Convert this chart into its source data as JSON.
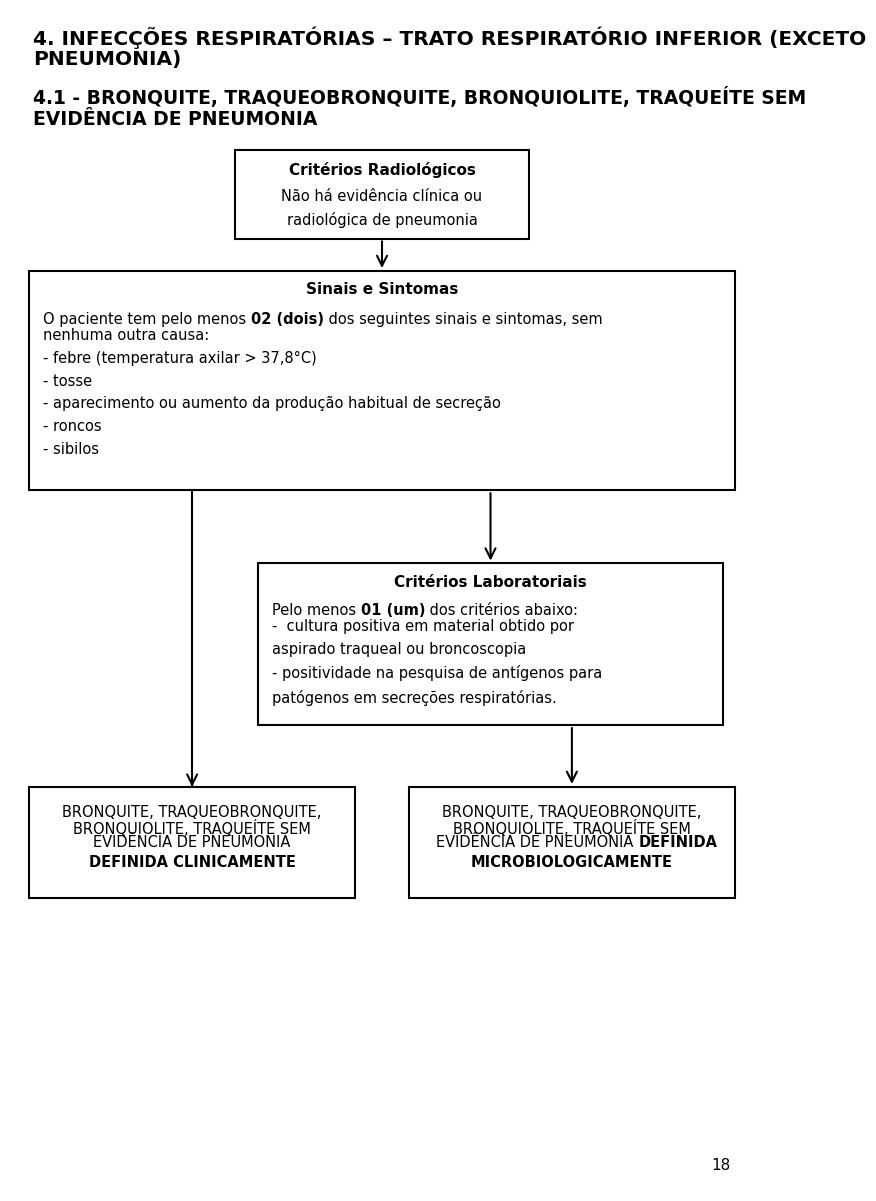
{
  "title_line1": "4. INFECÇÕES RESPIRATÓRIAS – TRATO RESPIRATÓRIO INFERIOR (EXCETO",
  "title_line2": "PNEUMONIA)",
  "subtitle_line1": "4.1 - BRONQUITE, TRAQUEOBRONQUITE, BRONQUIOLITE, TRAQUEÍTE SEM",
  "subtitle_line2": "EVIDÊNCIA DE PNEUMONIA",
  "box1_title": "Critérios Radiológicos",
  "box1_body": "Não há evidência clínica ou\nradiológica de pneumonia",
  "box2_title": "Sinais e Sintomas",
  "box3_title": "Critérios Laboratoriais",
  "box4_line1": "BRONQUITE, TRAQUEOBRONQUITE,",
  "box4_line2": "BRONQUIOLITE, TRAQUEÍTE SEM",
  "box4_line3": "EVIDÊNCIA DE PNEUMONIA",
  "box4_bold": "DEFINIDA CLINICAMENTE",
  "box5_line1": "BRONQUITE, TRAQUEOBRONQUITE,",
  "box5_line2": "BRONQUIOLITE, TRAQUEÍTE SEM",
  "box5_line3_normal": "EVIDÊNCIA DE PNEUMONIA ",
  "box5_line3_bold": "DEFINIDA",
  "box5_bold_line": "MICROBIOLOGICAMENTE",
  "bg_color": "#ffffff",
  "text_color": "#000000",
  "box_edge_color": "#000000",
  "page_number": "18"
}
